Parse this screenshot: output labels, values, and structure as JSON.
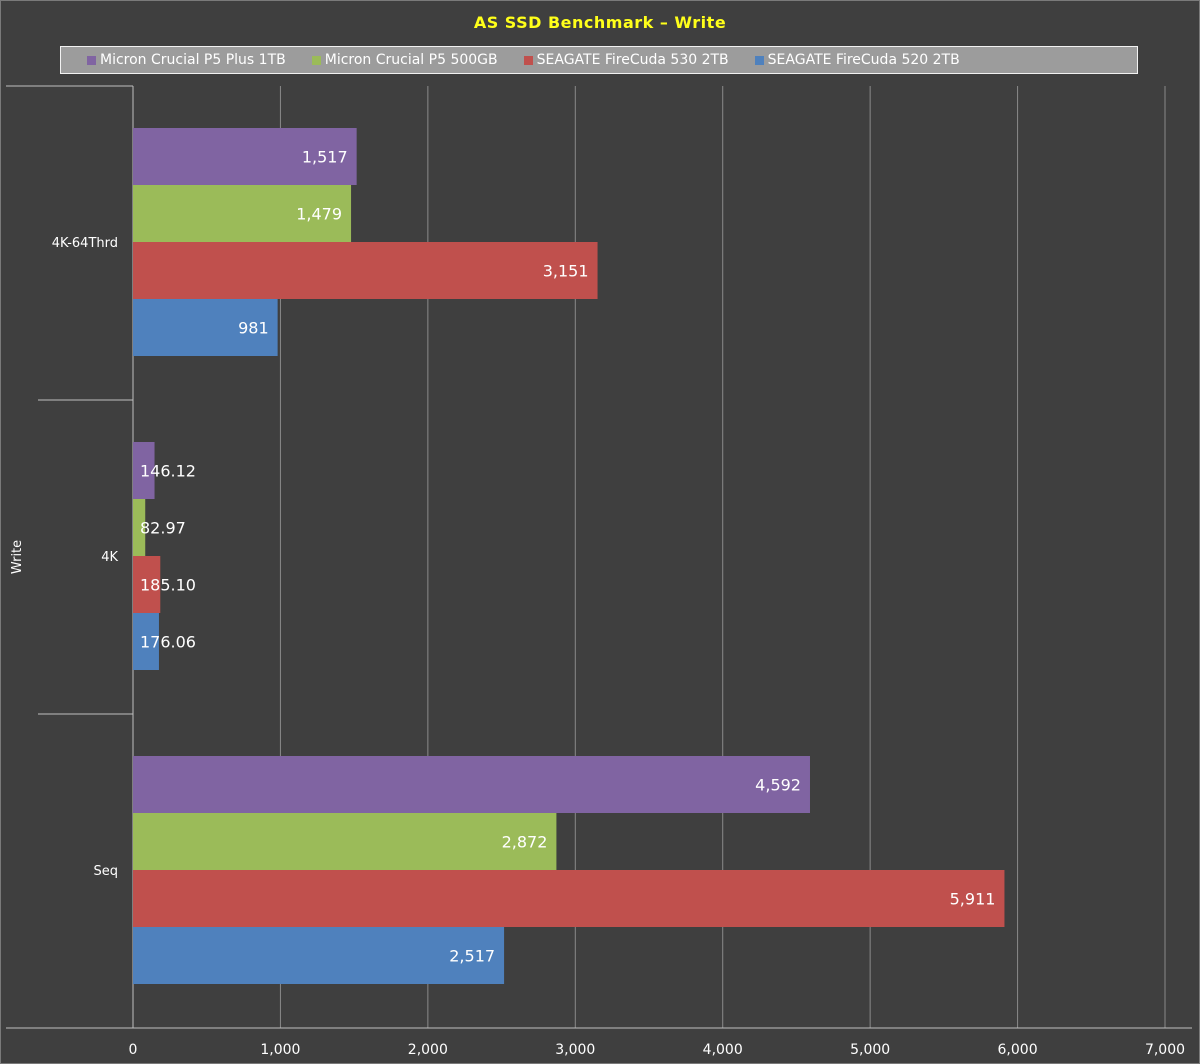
{
  "chart_data": {
    "type": "bar",
    "orientation": "horizontal",
    "title": "AS SSD Benchmark – Write",
    "ylabel": "Write",
    "categories": [
      "4K-64Thrd",
      "4K",
      "Seq"
    ],
    "series": [
      {
        "name": "Micron Crucial P5 Plus 1TB",
        "color": "#8064a2",
        "values": [
          1517,
          146.12,
          4592
        ],
        "labels": [
          "1,517",
          "146.12",
          "4,592"
        ]
      },
      {
        "name": "Micron Crucial P5 500GB",
        "color": "#9bbb59",
        "values": [
          1479,
          82.97,
          2872
        ],
        "labels": [
          "1,479",
          "82.97",
          "2,872"
        ]
      },
      {
        "name": "SEAGATE FireCuda 530 2TB",
        "color": "#c0504d",
        "values": [
          3151,
          185.1,
          5911
        ],
        "labels": [
          "3,151",
          "185.10",
          "5,911"
        ]
      },
      {
        "name": "SEAGATE FireCuda 520 2TB",
        "color": "#4f81bd",
        "values": [
          981,
          176.06,
          2517
        ],
        "labels": [
          "981",
          "176.06",
          "2,517"
        ]
      }
    ],
    "xlim": [
      0,
      7000
    ],
    "xticks": [
      0,
      1000,
      2000,
      3000,
      4000,
      5000,
      6000,
      7000
    ],
    "xtick_labels": [
      "0",
      "1,000",
      "2,000",
      "3,000",
      "4,000",
      "5,000",
      "6,000",
      "7,000"
    ],
    "grid": true,
    "legend_position": "top",
    "colors": {
      "background": "#3f3f3f",
      "title": "#ffff1a",
      "legend_bg": "#9c9c9c",
      "gridline": "#8a8a8a",
      "text": "#ffffff"
    }
  }
}
